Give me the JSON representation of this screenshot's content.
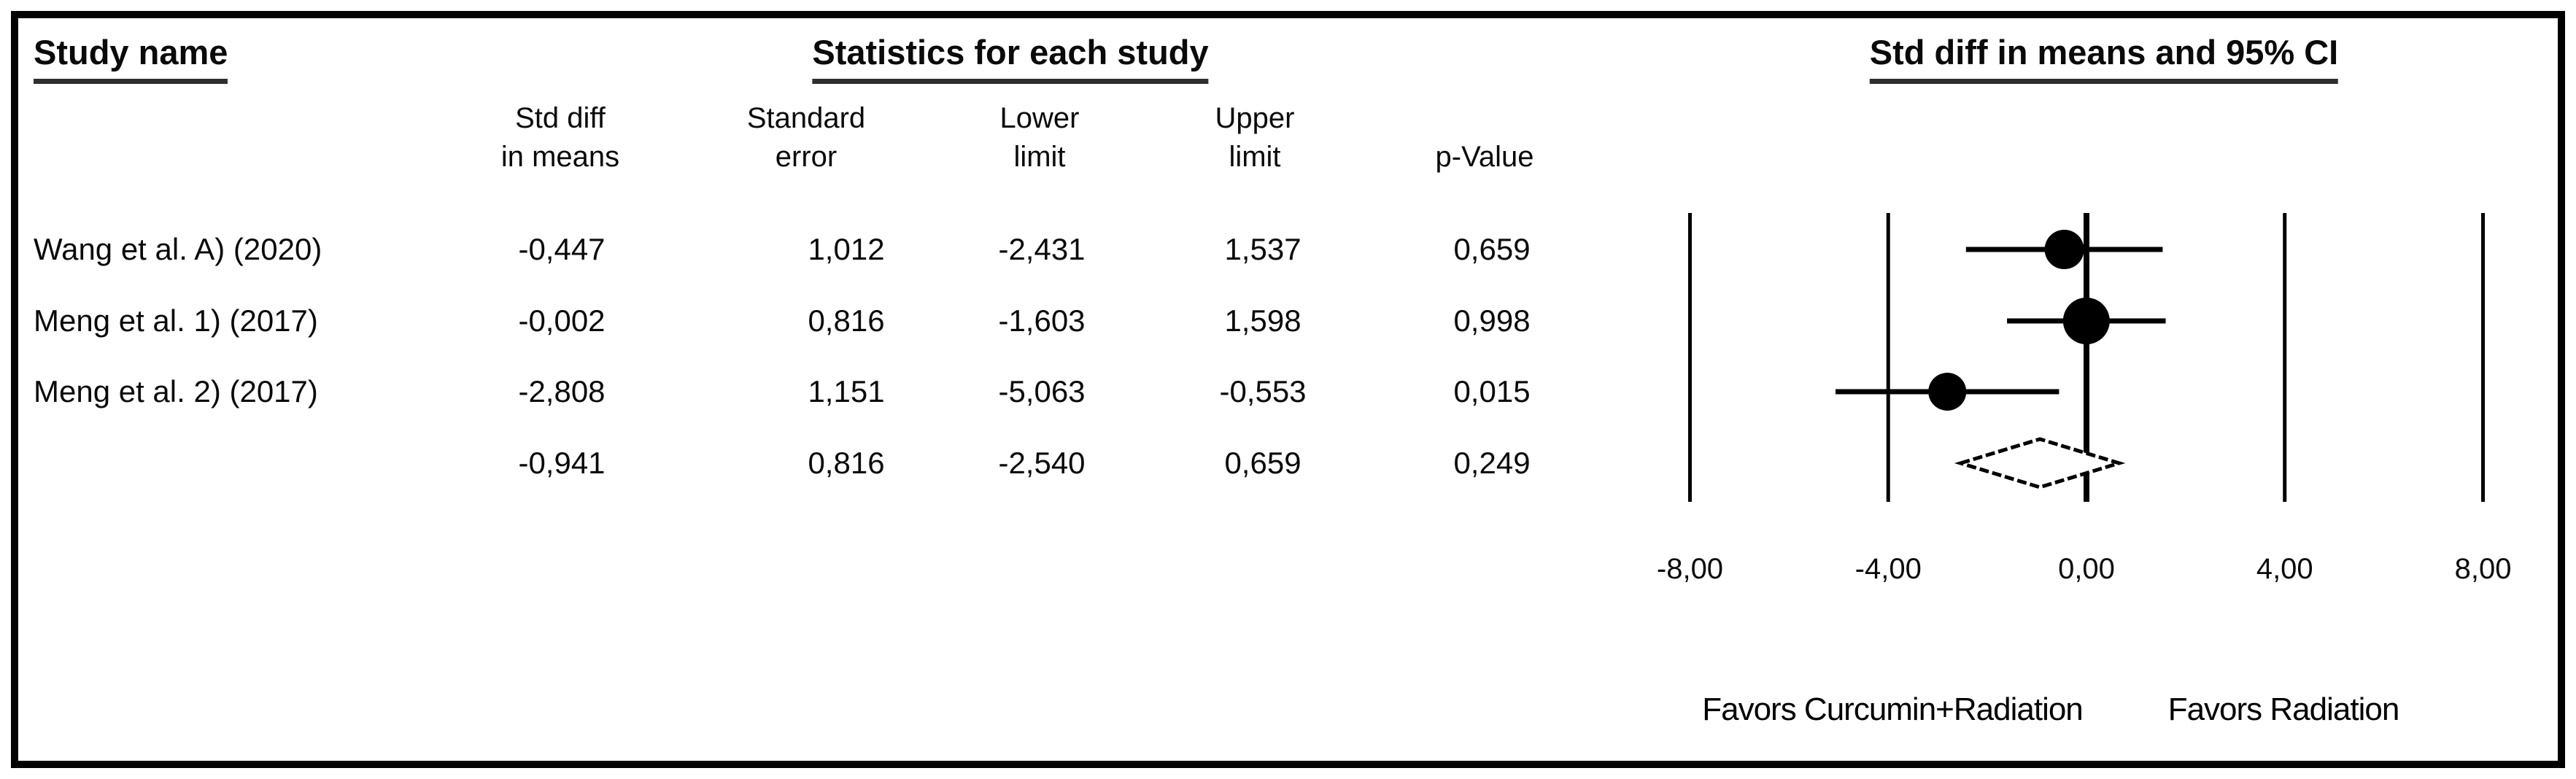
{
  "titles": {
    "study_name": "Study name",
    "statistics": "Statistics for each study",
    "ci": "Std diff in means and 95% CI"
  },
  "columns": {
    "std_diff": {
      "line1": "Std diff",
      "line2": "in means"
    },
    "std_err": {
      "line1": "Standard",
      "line2": "error"
    },
    "lower": {
      "line1": "Lower",
      "line2": "limit"
    },
    "upper": {
      "line1": "Upper",
      "line2": "limit"
    },
    "p": {
      "line1": "",
      "line2": "p-Value"
    }
  },
  "table": {
    "rows": [
      {
        "study": "Wang et al. A) (2020)",
        "std_diff": "-0,447",
        "std_err": "1,012",
        "lower": "-2,431",
        "upper": "1,537",
        "p": "0,659"
      },
      {
        "study": "Meng et al. 1) (2017)",
        "std_diff": "-0,002",
        "std_err": "0,816",
        "lower": "-1,603",
        "upper": "1,598",
        "p": "0,998"
      },
      {
        "study": "Meng et al. 2) (2017)",
        "std_diff": "-2,808",
        "std_err": "1,151",
        "lower": "-5,063",
        "upper": "-0,553",
        "p": "0,015"
      },
      {
        "study": "",
        "std_diff": "-0,941",
        "std_err": "0,816",
        "lower": "-2,540",
        "upper": "0,659",
        "p": "0,249"
      }
    ]
  },
  "chart_data": {
    "type": "forest",
    "title": "Std diff in means and 95% CI",
    "effect_measure": "Std diff in means",
    "xlim": [
      -8,
      8
    ],
    "axis_ticks": [
      {
        "value": -8,
        "label": "-8,00"
      },
      {
        "value": -4,
        "label": "-4,00"
      },
      {
        "value": 0,
        "label": "0,00"
      },
      {
        "value": 4,
        "label": "4,00"
      },
      {
        "value": 8,
        "label": "8,00"
      }
    ],
    "studies": [
      {
        "name": "Wang et al. A) (2020)",
        "mean": -0.447,
        "std_err": 1.012,
        "lower": -2.431,
        "upper": 1.537,
        "p": 0.659,
        "marker_radius": 27
      },
      {
        "name": "Meng et al. 1) (2017)",
        "mean": -0.002,
        "std_err": 0.816,
        "lower": -1.603,
        "upper": 1.598,
        "p": 0.998,
        "marker_radius": 32
      },
      {
        "name": "Meng et al. 2) (2017)",
        "mean": -2.808,
        "std_err": 1.151,
        "lower": -5.063,
        "upper": -0.553,
        "p": 0.015,
        "marker_radius": 26
      }
    ],
    "overall": {
      "mean": -0.941,
      "std_err": 0.816,
      "lower": -2.54,
      "upper": 0.659,
      "p": 0.249
    },
    "footer_left": "Favors Curcumin+Radiation",
    "footer_right": "Favors Radiation",
    "colors": {
      "marker": "#000000",
      "line": "#000000",
      "diamond_fill": "#ffffff",
      "background": "#ffffff"
    }
  }
}
